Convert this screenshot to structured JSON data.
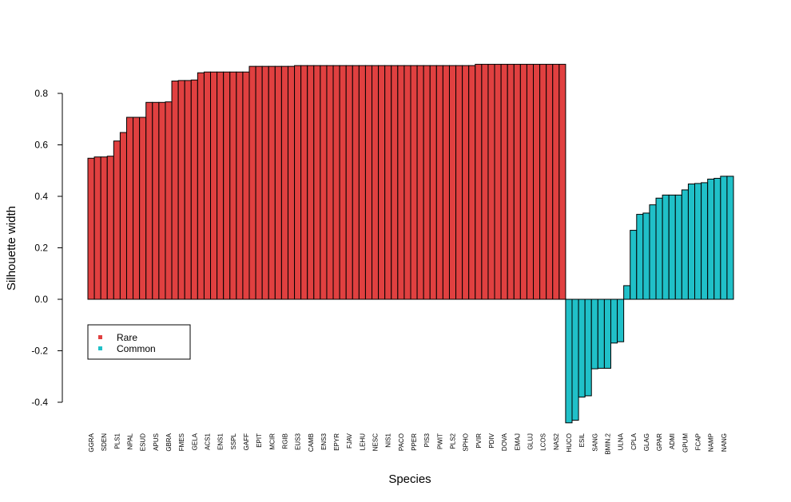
{
  "chart_data": {
    "type": "bar",
    "x_label": "Species",
    "y_label": "Silhouette width",
    "categories": [
      "GGRA",
      null,
      "SDEN",
      null,
      "PLS1",
      null,
      "NPAL",
      null,
      "ESUD",
      null,
      "APUS",
      null,
      "GBRA",
      null,
      "FMES",
      null,
      "GELA",
      null,
      "ACS1",
      null,
      "ENS1",
      null,
      "SSPL",
      null,
      "GAFF",
      null,
      "EPIT",
      null,
      "MCIR",
      null,
      "RGIB",
      null,
      "EUS3",
      null,
      "CAMB",
      null,
      "ENS3",
      null,
      "EPYR",
      null,
      "FJAV",
      null,
      "LEHU",
      null,
      "NESC",
      null,
      "NIS1",
      null,
      "PACO",
      null,
      "PPER",
      null,
      "PIS3",
      null,
      "PWIT",
      null,
      "PLS2",
      null,
      "SPHO",
      null,
      "PVIR",
      null,
      "PDIV",
      null,
      "DOVA",
      null,
      "EMAJ",
      null,
      "GLUJ",
      null,
      "LCOS",
      null,
      "NAS2",
      null,
      "HUCO",
      null,
      "ESIL",
      null,
      "SANG",
      null,
      "BMIN.2",
      null,
      "ULNA",
      null,
      "CPLA",
      null,
      "GLAG",
      null,
      "GPAR",
      null,
      "ADMI",
      null,
      "GPUM",
      null,
      "FCAP",
      null,
      "NAMP",
      null,
      "NANG",
      null
    ],
    "series": [
      {
        "name": "Rare",
        "color": "#e04040",
        "values": [
          0.548,
          0.553,
          0.553,
          0.556,
          0.615,
          0.648,
          0.707,
          0.707,
          0.707,
          0.765,
          0.765,
          0.765,
          0.767,
          0.848,
          0.85,
          0.85,
          0.852,
          0.88,
          0.883,
          0.883,
          0.883,
          0.883,
          0.883,
          0.883,
          0.883,
          0.905,
          0.905,
          0.905,
          0.905,
          0.905,
          0.905,
          0.905,
          0.908,
          0.908,
          0.908,
          0.908,
          0.908,
          0.908,
          0.908,
          0.908,
          0.908,
          0.908,
          0.908,
          0.908,
          0.908,
          0.908,
          0.908,
          0.908,
          0.908,
          0.908,
          0.908,
          0.908,
          0.908,
          0.908,
          0.908,
          0.908,
          0.908,
          0.908,
          0.908,
          0.908,
          0.913,
          0.913,
          0.913,
          0.913,
          0.913,
          0.913,
          0.913,
          0.913,
          0.913,
          0.913,
          0.913,
          0.913,
          0.913,
          0.913,
          null,
          null,
          null,
          null,
          null,
          null,
          null,
          null,
          null,
          null,
          null,
          null,
          null,
          null,
          null,
          null,
          null,
          null,
          null,
          null,
          null,
          null,
          null,
          null,
          null,
          null
        ]
      },
      {
        "name": "Common",
        "color": "#20c0c8",
        "values": [
          null,
          null,
          null,
          null,
          null,
          null,
          null,
          null,
          null,
          null,
          null,
          null,
          null,
          null,
          null,
          null,
          null,
          null,
          null,
          null,
          null,
          null,
          null,
          null,
          null,
          null,
          null,
          null,
          null,
          null,
          null,
          null,
          null,
          null,
          null,
          null,
          null,
          null,
          null,
          null,
          null,
          null,
          null,
          null,
          null,
          null,
          null,
          null,
          null,
          null,
          null,
          null,
          null,
          null,
          null,
          null,
          null,
          null,
          null,
          null,
          null,
          null,
          null,
          null,
          null,
          null,
          null,
          null,
          null,
          null,
          null,
          null,
          null,
          null,
          -0.48,
          -0.47,
          -0.38,
          -0.375,
          -0.27,
          -0.268,
          -0.268,
          -0.17,
          -0.165,
          0.053,
          0.268,
          0.33,
          0.335,
          0.367,
          0.393,
          0.405,
          0.405,
          0.405,
          0.425,
          0.448,
          0.45,
          0.453,
          0.467,
          0.47,
          0.478,
          0.478
        ]
      }
    ],
    "ylim": [
      -0.5,
      0.95
    ],
    "yticks": [
      -0.4,
      -0.2,
      {
        "value": 0,
        "label": "0.0"
      },
      0.2,
      0.4,
      0.6,
      0.8
    ],
    "legend": "bottom-left"
  }
}
